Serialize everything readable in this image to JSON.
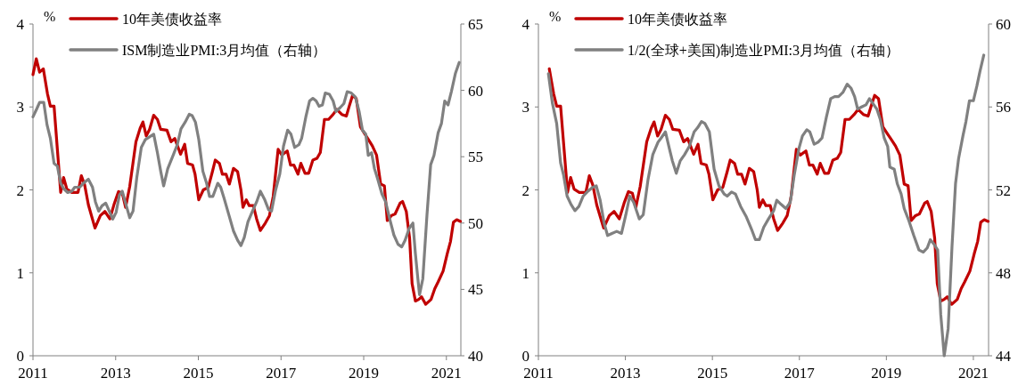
{
  "chart_data": [
    {
      "type": "line",
      "ylabel": "%",
      "xlim": [
        2011,
        2021.35
      ],
      "xticks": [
        2011,
        2013,
        2015,
        2017,
        2019,
        2021
      ],
      "ylim": [
        0,
        4
      ],
      "yticks": [
        0,
        1,
        2,
        3,
        4
      ],
      "y2lim": [
        40,
        65
      ],
      "y2ticks": [
        40,
        45,
        50,
        55,
        60,
        65
      ],
      "legend": "top left",
      "grid": false,
      "line_style": "solid",
      "series": [
        {
          "name": "10年美债收益率",
          "color": "#c00000",
          "x": [
            2011.0,
            2011.08,
            2011.16,
            2011.25,
            2011.35,
            2011.42,
            2011.51,
            2011.59,
            2011.67,
            2011.74,
            2011.82,
            2011.94,
            2012.09,
            2012.17,
            2012.25,
            2012.34,
            2012.5,
            2012.63,
            2012.74,
            2012.86,
            2012.97,
            2013.07,
            2013.16,
            2013.24,
            2013.34,
            2013.49,
            2013.59,
            2013.66,
            2013.74,
            2013.82,
            2013.92,
            2014.01,
            2014.09,
            2014.24,
            2014.34,
            2014.43,
            2014.57,
            2014.67,
            2014.74,
            2014.86,
            2014.92,
            2015.01,
            2015.12,
            2015.24,
            2015.34,
            2015.41,
            2015.51,
            2015.58,
            2015.67,
            2015.75,
            2015.85,
            2015.95,
            2016.03,
            2016.08,
            2016.16,
            2016.23,
            2016.33,
            2016.41,
            2016.5,
            2016.62,
            2016.72,
            2016.81,
            2016.93,
            2017.02,
            2017.15,
            2017.23,
            2017.31,
            2017.41,
            2017.48,
            2017.58,
            2017.67,
            2017.77,
            2017.87,
            2017.95,
            2018.05,
            2018.15,
            2018.26,
            2018.35,
            2018.47,
            2018.58,
            2018.65,
            2018.73,
            2018.82,
            2018.92,
            2019.02,
            2019.11,
            2019.21,
            2019.31,
            2019.41,
            2019.5,
            2019.57,
            2019.67,
            2019.76,
            2019.88,
            2019.94,
            2020.03,
            2020.11,
            2020.17,
            2020.25,
            2020.33,
            2020.4,
            2020.5,
            2020.63,
            2020.72,
            2020.8,
            2020.92,
            2021.02,
            2021.1,
            2021.17,
            2021.25,
            2021.34
          ],
          "values": [
            3.39,
            3.58,
            3.42,
            3.46,
            3.16,
            3.01,
            3.01,
            2.49,
            1.97,
            2.15,
            2.01,
            1.97,
            1.97,
            2.17,
            2.06,
            1.82,
            1.54,
            1.69,
            1.74,
            1.65,
            1.84,
            1.98,
            1.96,
            1.79,
            2.04,
            2.58,
            2.74,
            2.82,
            2.65,
            2.73,
            2.9,
            2.85,
            2.73,
            2.72,
            2.58,
            2.62,
            2.43,
            2.55,
            2.32,
            2.3,
            2.19,
            1.88,
            2.0,
            2.03,
            2.22,
            2.36,
            2.32,
            2.19,
            2.19,
            2.07,
            2.26,
            2.22,
            2.0,
            1.79,
            1.88,
            1.81,
            1.81,
            1.65,
            1.51,
            1.6,
            1.69,
            1.92,
            2.49,
            2.42,
            2.47,
            2.3,
            2.3,
            2.19,
            2.32,
            2.2,
            2.2,
            2.36,
            2.38,
            2.45,
            2.85,
            2.85,
            2.91,
            2.97,
            2.91,
            2.89,
            3.01,
            3.14,
            3.1,
            2.76,
            2.68,
            2.61,
            2.53,
            2.42,
            2.07,
            2.05,
            1.63,
            1.69,
            1.71,
            1.84,
            1.86,
            1.74,
            1.42,
            0.87,
            0.66,
            0.68,
            0.71,
            0.62,
            0.68,
            0.81,
            0.89,
            1.02,
            1.23,
            1.38,
            1.61,
            1.64,
            1.62
          ]
        },
        {
          "name": "ISM制造业PMI:3月均值（右轴）",
          "color": "#808080",
          "axis": "y2",
          "x": [
            2011.0,
            2011.09,
            2011.16,
            2011.26,
            2011.34,
            2011.42,
            2011.51,
            2011.59,
            2011.67,
            2011.74,
            2011.84,
            2011.94,
            2012.01,
            2012.13,
            2012.22,
            2012.34,
            2012.44,
            2012.51,
            2012.59,
            2012.67,
            2012.76,
            2012.86,
            2012.93,
            2013.01,
            2013.09,
            2013.16,
            2013.24,
            2013.34,
            2013.42,
            2013.51,
            2013.62,
            2013.72,
            2013.82,
            2013.92,
            2014.01,
            2014.09,
            2014.16,
            2014.26,
            2014.39,
            2014.49,
            2014.58,
            2014.68,
            2014.78,
            2014.85,
            2014.93,
            2015.01,
            2015.11,
            2015.2,
            2015.27,
            2015.35,
            2015.47,
            2015.54,
            2015.62,
            2015.74,
            2015.85,
            2015.95,
            2016.03,
            2016.11,
            2016.2,
            2016.31,
            2016.41,
            2016.5,
            2016.6,
            2016.7,
            2016.77,
            2016.87,
            2016.97,
            2017.06,
            2017.16,
            2017.24,
            2017.33,
            2017.43,
            2017.5,
            2017.6,
            2017.69,
            2017.77,
            2017.85,
            2017.92,
            2018.0,
            2018.07,
            2018.17,
            2018.26,
            2018.33,
            2018.43,
            2018.52,
            2018.6,
            2018.7,
            2018.8,
            2018.89,
            2018.97,
            2019.05,
            2019.11,
            2019.19,
            2019.26,
            2019.34,
            2019.44,
            2019.53,
            2019.63,
            2019.73,
            2019.83,
            2019.92,
            2020.0,
            2020.1,
            2020.19,
            2020.25,
            2020.31,
            2020.35,
            2020.43,
            2020.53,
            2020.62,
            2020.7,
            2020.8,
            2020.88,
            2020.96,
            2021.04,
            2021.12,
            2021.22,
            2021.31
          ],
          "values": [
            58.0,
            58.6,
            59.1,
            59.1,
            57.4,
            56.4,
            54.5,
            54.3,
            53.0,
            52.6,
            52.3,
            52.4,
            52.7,
            52.7,
            53.0,
            53.3,
            52.7,
            51.6,
            50.9,
            51.3,
            51.5,
            50.8,
            50.3,
            50.8,
            52.1,
            52.4,
            51.5,
            50.4,
            50.9,
            53.4,
            55.7,
            56.3,
            56.5,
            56.7,
            55.3,
            53.9,
            52.8,
            54.1,
            55.1,
            55.9,
            57.1,
            57.6,
            58.2,
            58.1,
            57.6,
            56.3,
            53.9,
            53.0,
            52.0,
            52.0,
            53.0,
            52.7,
            51.9,
            50.6,
            49.4,
            48.7,
            48.3,
            48.9,
            50.1,
            50.9,
            51.6,
            52.4,
            51.8,
            51.0,
            50.9,
            52.5,
            53.7,
            55.8,
            57.0,
            56.7,
            55.7,
            55.9,
            56.4,
            58.0,
            59.2,
            59.4,
            59.2,
            58.8,
            58.9,
            59.8,
            59.7,
            59.2,
            58.4,
            58.7,
            59.0,
            59.9,
            59.8,
            59.5,
            58.4,
            57.0,
            56.7,
            55.1,
            55.3,
            54.1,
            53.3,
            52.2,
            51.6,
            50.3,
            49.1,
            48.4,
            48.2,
            48.7,
            49.6,
            50.0,
            47.7,
            45.8,
            44.6,
            45.8,
            50.6,
            54.4,
            55.1,
            56.8,
            57.5,
            59.2,
            58.9,
            59.9,
            61.3,
            62.1
          ]
        }
      ]
    },
    {
      "type": "line",
      "ylabel": "%",
      "xlim": [
        2011,
        2021.35
      ],
      "xticks": [
        2011,
        2013,
        2015,
        2017,
        2019,
        2021
      ],
      "ylim": [
        0,
        4
      ],
      "yticks": [
        0,
        1,
        2,
        3,
        4
      ],
      "y2lim": [
        44,
        60
      ],
      "y2ticks": [
        44,
        48,
        52,
        56,
        60
      ],
      "legend": "top left",
      "grid": false,
      "line_style": "solid",
      "series": [
        {
          "name": "10年美债收益率",
          "color": "#c00000",
          "x": [
            2011.25,
            2011.35,
            2011.42,
            2011.51,
            2011.59,
            2011.67,
            2011.74,
            2011.82,
            2011.94,
            2012.09,
            2012.17,
            2012.25,
            2012.34,
            2012.5,
            2012.63,
            2012.74,
            2012.86,
            2012.97,
            2013.07,
            2013.16,
            2013.24,
            2013.34,
            2013.49,
            2013.59,
            2013.66,
            2013.74,
            2013.82,
            2013.92,
            2014.01,
            2014.09,
            2014.24,
            2014.34,
            2014.43,
            2014.57,
            2014.67,
            2014.74,
            2014.86,
            2014.92,
            2015.01,
            2015.12,
            2015.24,
            2015.34,
            2015.41,
            2015.51,
            2015.58,
            2015.67,
            2015.75,
            2015.85,
            2015.95,
            2016.03,
            2016.08,
            2016.16,
            2016.23,
            2016.33,
            2016.41,
            2016.5,
            2016.62,
            2016.72,
            2016.81,
            2016.93,
            2017.02,
            2017.15,
            2017.23,
            2017.31,
            2017.41,
            2017.48,
            2017.58,
            2017.67,
            2017.77,
            2017.87,
            2017.95,
            2018.05,
            2018.15,
            2018.26,
            2018.35,
            2018.47,
            2018.58,
            2018.65,
            2018.73,
            2018.82,
            2018.92,
            2019.02,
            2019.11,
            2019.21,
            2019.31,
            2019.41,
            2019.5,
            2019.57,
            2019.67,
            2019.76,
            2019.88,
            2019.94,
            2020.03,
            2020.11,
            2020.17,
            2020.25,
            2020.33,
            2020.4,
            2020.5,
            2020.63,
            2020.72,
            2020.8,
            2020.92,
            2021.02,
            2021.1,
            2021.17,
            2021.25,
            2021.34
          ],
          "values": [
            3.46,
            3.16,
            3.01,
            3.01,
            2.49,
            1.97,
            2.15,
            2.01,
            1.97,
            1.97,
            2.17,
            2.06,
            1.82,
            1.54,
            1.69,
            1.74,
            1.65,
            1.84,
            1.98,
            1.96,
            1.79,
            2.04,
            2.58,
            2.74,
            2.82,
            2.65,
            2.73,
            2.9,
            2.85,
            2.73,
            2.72,
            2.58,
            2.62,
            2.43,
            2.55,
            2.32,
            2.3,
            2.19,
            1.88,
            2.0,
            2.03,
            2.22,
            2.36,
            2.32,
            2.19,
            2.19,
            2.07,
            2.26,
            2.22,
            2.0,
            1.79,
            1.88,
            1.81,
            1.81,
            1.65,
            1.51,
            1.6,
            1.69,
            1.92,
            2.49,
            2.42,
            2.47,
            2.3,
            2.3,
            2.19,
            2.32,
            2.2,
            2.2,
            2.36,
            2.38,
            2.45,
            2.85,
            2.85,
            2.91,
            2.97,
            2.91,
            2.89,
            3.01,
            3.14,
            3.1,
            2.76,
            2.68,
            2.61,
            2.53,
            2.42,
            2.07,
            2.05,
            1.63,
            1.69,
            1.71,
            1.84,
            1.86,
            1.74,
            1.42,
            0.87,
            0.66,
            0.68,
            0.71,
            0.62,
            0.68,
            0.81,
            0.89,
            1.02,
            1.23,
            1.38,
            1.61,
            1.64,
            1.62
          ]
        },
        {
          "name": "1/2(全球+美国)制造业PMI:3月均值（右轴）",
          "color": "#808080",
          "axis": "y2",
          "x": [
            2011.23,
            2011.32,
            2011.42,
            2011.51,
            2011.58,
            2011.66,
            2011.75,
            2011.84,
            2011.93,
            2012.03,
            2012.12,
            2012.23,
            2012.33,
            2012.42,
            2012.51,
            2012.59,
            2012.69,
            2012.8,
            2012.91,
            2013.01,
            2013.1,
            2013.19,
            2013.32,
            2013.41,
            2013.52,
            2013.63,
            2013.75,
            2013.82,
            2013.92,
            2014.01,
            2014.08,
            2014.17,
            2014.26,
            2014.36,
            2014.47,
            2014.58,
            2014.66,
            2014.75,
            2014.83,
            2014.93,
            2015.04,
            2015.15,
            2015.27,
            2015.34,
            2015.44,
            2015.53,
            2015.65,
            2015.78,
            2015.9,
            2015.99,
            2016.08,
            2016.18,
            2016.29,
            2016.41,
            2016.48,
            2016.58,
            2016.69,
            2016.79,
            2016.88,
            2016.99,
            2017.07,
            2017.17,
            2017.24,
            2017.34,
            2017.43,
            2017.52,
            2017.62,
            2017.72,
            2017.81,
            2017.9,
            2018.0,
            2018.1,
            2018.19,
            2018.27,
            2018.34,
            2018.43,
            2018.53,
            2018.61,
            2018.68,
            2018.78,
            2018.86,
            2018.95,
            2019.03,
            2019.08,
            2019.18,
            2019.25,
            2019.34,
            2019.41,
            2019.52,
            2019.63,
            2019.75,
            2019.85,
            2019.94,
            2020.01,
            2020.09,
            2020.18,
            2020.25,
            2020.33,
            2020.42,
            2020.51,
            2020.59,
            2020.66,
            2020.76,
            2020.83,
            2020.91,
            2021.0,
            2021.08,
            2021.15,
            2021.24
          ],
          "values": [
            57.6,
            56.2,
            55.2,
            53.3,
            52.7,
            51.7,
            51.3,
            51.0,
            51.2,
            51.7,
            51.9,
            52.1,
            52.2,
            51.5,
            50.4,
            49.8,
            49.9,
            50.0,
            49.9,
            50.8,
            51.7,
            51.4,
            50.6,
            50.8,
            52.5,
            53.7,
            54.3,
            54.5,
            54.8,
            54.0,
            53.4,
            52.8,
            53.4,
            53.7,
            54.1,
            54.8,
            55.0,
            55.3,
            55.2,
            54.8,
            53.0,
            52.2,
            51.8,
            51.7,
            51.9,
            51.8,
            51.2,
            50.7,
            50.1,
            49.6,
            49.6,
            50.2,
            50.6,
            51.0,
            51.5,
            51.3,
            51.1,
            51.4,
            52.7,
            54.0,
            54.6,
            54.9,
            54.8,
            54.2,
            54.3,
            54.5,
            55.5,
            56.4,
            56.5,
            56.5,
            56.7,
            57.1,
            56.9,
            56.5,
            55.9,
            56.0,
            56.1,
            56.4,
            56.2,
            55.9,
            55.4,
            54.5,
            54.1,
            53.1,
            53.0,
            52.3,
            51.8,
            51.1,
            50.5,
            49.8,
            49.1,
            49.0,
            49.2,
            49.6,
            49.4,
            49.1,
            46.0,
            44.0,
            45.3,
            49.3,
            52.3,
            53.5,
            54.6,
            55.3,
            56.3,
            56.3,
            57.0,
            57.7,
            58.5
          ]
        }
      ]
    }
  ]
}
